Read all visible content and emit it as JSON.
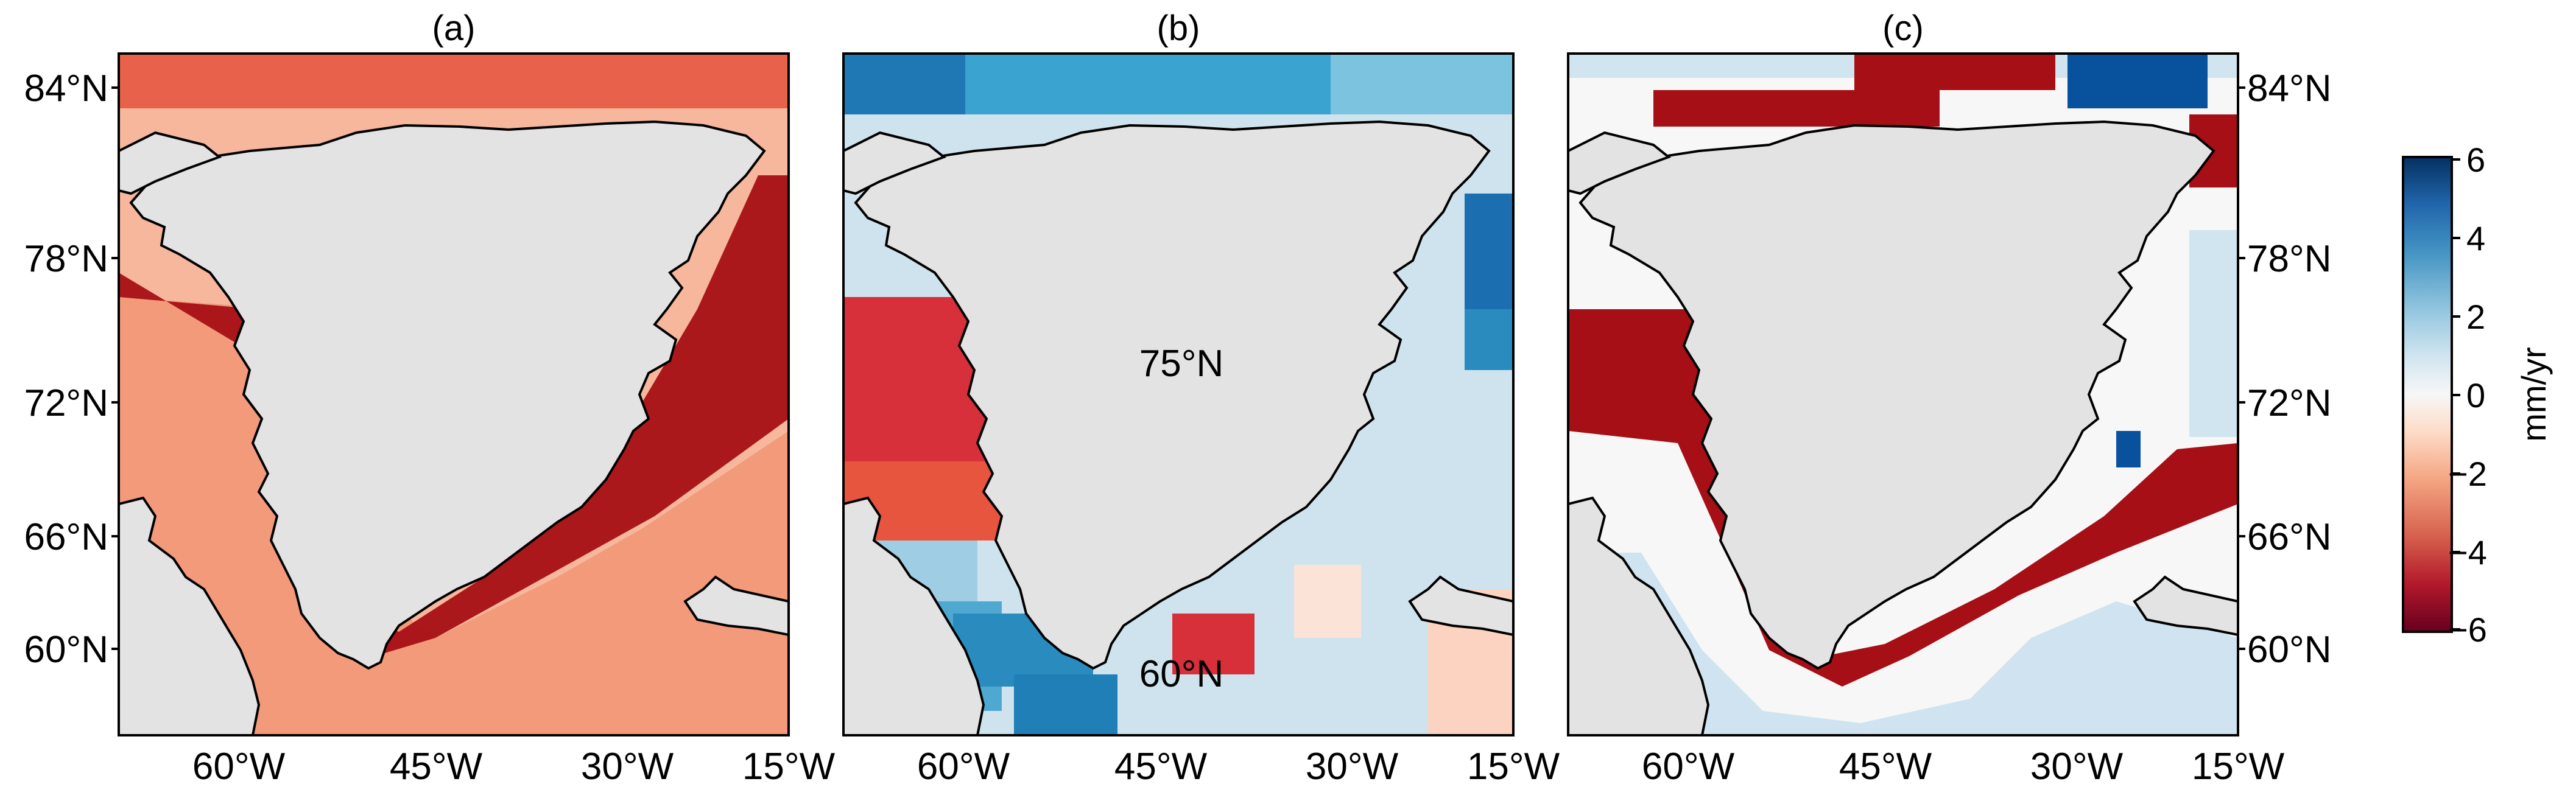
{
  "panels": [
    {
      "id": "a",
      "title": "(a)",
      "inset_labels": []
    },
    {
      "id": "b",
      "title": "(b)",
      "inset_labels": [
        "75°N",
        "60°N"
      ]
    },
    {
      "id": "c",
      "title": "(c)",
      "inset_labels": []
    }
  ],
  "axes": {
    "lat_labels": [
      "84°N",
      "78°N",
      "72°N",
      "66°N",
      "60°N"
    ],
    "lon_labels": [
      "60°W",
      "45°W",
      "30°W",
      "15°W"
    ]
  },
  "colorbar": {
    "label": "mm/yr",
    "ticks": [
      "6",
      "4",
      "2",
      "0",
      "−2",
      "−4",
      "−6"
    ],
    "range": [
      -6,
      6
    ],
    "colors": [
      "#67001f",
      "#b2182b",
      "#d6604d",
      "#f4a582",
      "#fddbc7",
      "#f7f7f7",
      "#d1e5f0",
      "#92c5de",
      "#4393c3",
      "#2166ac",
      "#053061"
    ]
  },
  "colors": {
    "land": "#e3e3e3",
    "coast": "#000000",
    "strong_negative": "#a50f15",
    "negative": "#e34a33",
    "weak_negative": "#fcbba1",
    "positive": "#2b8cbe",
    "strong_positive": "#08519c"
  }
}
